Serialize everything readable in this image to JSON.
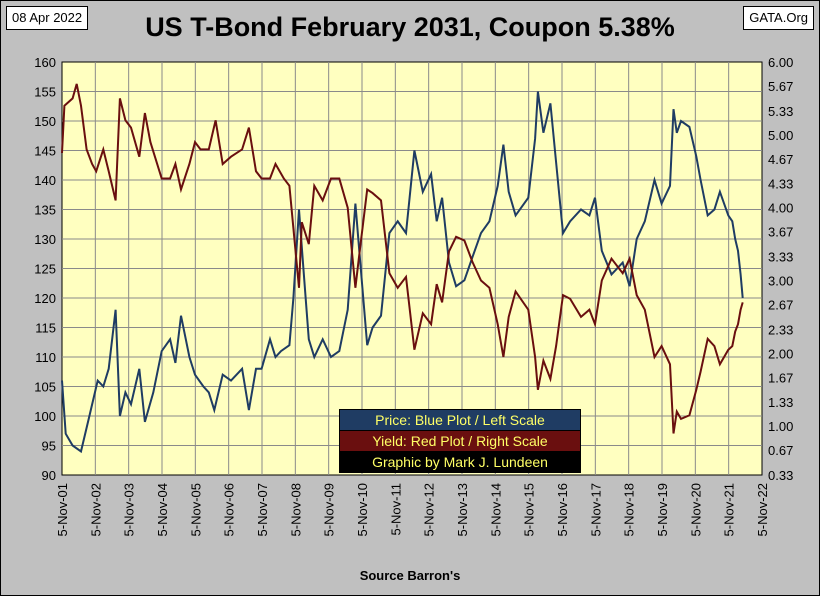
{
  "header": {
    "date": "08 Apr 2022",
    "title": "US T-Bond February 2031, Coupon 5.38%",
    "source": "GATA.Org"
  },
  "footer": {
    "source_note": "Source Barron's"
  },
  "legend": {
    "price": "Price:  Blue Plot / Left Scale",
    "yield": "Yield:  Red Plot / Right Scale",
    "credit": "Graphic by Mark J. Lundeen"
  },
  "colors": {
    "plot_bg": "#ffffc0",
    "price": "#1f3c63",
    "yield": "#6a0f0f",
    "grid": "#8a8a8a",
    "legend_text": "#ffff66"
  },
  "chart_data": {
    "type": "line",
    "title": "US T-Bond February 2031, Coupon 5.38%",
    "xlabel": "",
    "ylabel": "",
    "x_ticks": [
      "5-Nov-01",
      "5-Nov-02",
      "5-Nov-03",
      "5-Nov-04",
      "5-Nov-05",
      "5-Nov-06",
      "5-Nov-07",
      "5-Nov-08",
      "5-Nov-09",
      "5-Nov-10",
      "5-Nov-11",
      "5-Nov-12",
      "5-Nov-13",
      "5-Nov-14",
      "5-Nov-15",
      "5-Nov-16",
      "5-Nov-17",
      "5-Nov-18",
      "5-Nov-19",
      "5-Nov-20",
      "5-Nov-21",
      "5-Nov-22"
    ],
    "xlim": [
      "2001-11-05",
      "2022-11-05"
    ],
    "y_left": {
      "min": 90,
      "max": 160,
      "step": 5,
      "ticks": [
        "90",
        "95",
        "100",
        "105",
        "110",
        "115",
        "120",
        "125",
        "130",
        "135",
        "140",
        "145",
        "150",
        "155",
        "160"
      ]
    },
    "y_right": {
      "min": 0.33,
      "max": 6.0,
      "ticks": [
        "0.33",
        "0.67",
        "1.00",
        "1.33",
        "1.67",
        "2.00",
        "2.33",
        "2.67",
        "3.00",
        "3.33",
        "3.67",
        "4.00",
        "4.33",
        "4.67",
        "5.00",
        "5.33",
        "5.67",
        "6.00"
      ]
    },
    "grid": true,
    "legend_position": "bottom-center",
    "series": [
      {
        "name": "Price",
        "axis": "left",
        "points": [
          [
            "2001-11-05",
            106
          ],
          [
            "2001-12-15",
            97
          ],
          [
            "2002-03-01",
            95
          ],
          [
            "2002-06-01",
            94
          ],
          [
            "2002-09-01",
            100
          ],
          [
            "2002-12-01",
            106
          ],
          [
            "2003-02-01",
            105
          ],
          [
            "2003-04-01",
            108
          ],
          [
            "2003-06-15",
            118
          ],
          [
            "2003-08-01",
            100
          ],
          [
            "2003-10-01",
            104
          ],
          [
            "2003-12-01",
            102
          ],
          [
            "2004-03-01",
            108
          ],
          [
            "2004-05-01",
            99
          ],
          [
            "2004-08-01",
            104
          ],
          [
            "2004-11-01",
            111
          ],
          [
            "2005-02-01",
            113
          ],
          [
            "2005-04-01",
            109
          ],
          [
            "2005-06-01",
            117
          ],
          [
            "2005-09-01",
            110
          ],
          [
            "2005-11-01",
            107
          ],
          [
            "2006-02-01",
            105
          ],
          [
            "2006-04-01",
            104
          ],
          [
            "2006-06-01",
            101
          ],
          [
            "2006-09-01",
            107
          ],
          [
            "2006-12-01",
            106
          ],
          [
            "2007-04-01",
            108
          ],
          [
            "2007-06-15",
            101
          ],
          [
            "2007-09-01",
            108
          ],
          [
            "2007-11-01",
            108
          ],
          [
            "2008-02-01",
            113
          ],
          [
            "2008-04-01",
            110
          ],
          [
            "2008-06-01",
            111
          ],
          [
            "2008-09-01",
            112
          ],
          [
            "2008-10-15",
            120
          ],
          [
            "2008-12-15",
            135
          ],
          [
            "2009-02-01",
            125
          ],
          [
            "2009-04-01",
            113
          ],
          [
            "2009-06-01",
            110
          ],
          [
            "2009-09-01",
            113
          ],
          [
            "2009-12-01",
            110
          ],
          [
            "2010-03-01",
            111
          ],
          [
            "2010-06-01",
            118
          ],
          [
            "2010-08-25",
            136
          ],
          [
            "2010-10-01",
            129
          ],
          [
            "2011-01-01",
            112
          ],
          [
            "2011-03-01",
            115
          ],
          [
            "2011-06-01",
            117
          ],
          [
            "2011-09-01",
            131
          ],
          [
            "2011-12-01",
            133
          ],
          [
            "2012-03-01",
            131
          ],
          [
            "2012-06-01",
            145
          ],
          [
            "2012-09-01",
            138
          ],
          [
            "2012-12-01",
            141
          ],
          [
            "2013-02-01",
            133
          ],
          [
            "2013-04-01",
            137
          ],
          [
            "2013-06-15",
            126
          ],
          [
            "2013-09-01",
            122
          ],
          [
            "2013-12-01",
            123
          ],
          [
            "2014-03-01",
            127
          ],
          [
            "2014-06-01",
            131
          ],
          [
            "2014-09-01",
            133
          ],
          [
            "2014-12-01",
            139
          ],
          [
            "2015-02-01",
            146
          ],
          [
            "2015-04-01",
            138
          ],
          [
            "2015-06-15",
            134
          ],
          [
            "2015-11-01",
            137
          ],
          [
            "2016-01-15",
            147
          ],
          [
            "2016-02-15",
            155
          ],
          [
            "2016-04-15",
            148
          ],
          [
            "2016-07-01",
            153
          ],
          [
            "2016-09-01",
            143
          ],
          [
            "2016-11-15",
            131
          ],
          [
            "2017-02-01",
            133
          ],
          [
            "2017-06-01",
            135
          ],
          [
            "2017-09-01",
            134
          ],
          [
            "2017-11-01",
            137
          ],
          [
            "2018-01-15",
            128
          ],
          [
            "2018-05-01",
            124
          ],
          [
            "2018-09-01",
            126
          ],
          [
            "2018-11-15",
            122
          ],
          [
            "2019-02-01",
            130
          ],
          [
            "2019-05-01",
            133
          ],
          [
            "2019-08-15",
            140
          ],
          [
            "2019-11-01",
            136
          ],
          [
            "2020-02-01",
            139
          ],
          [
            "2020-03-10",
            152
          ],
          [
            "2020-04-15",
            148
          ],
          [
            "2020-06-01",
            150
          ],
          [
            "2020-09-01",
            149
          ],
          [
            "2020-11-15",
            144
          ],
          [
            "2021-01-01",
            140
          ],
          [
            "2021-03-20",
            134
          ],
          [
            "2021-06-01",
            135
          ],
          [
            "2021-08-01",
            138
          ],
          [
            "2021-11-01",
            134
          ],
          [
            "2021-12-15",
            133
          ],
          [
            "2022-01-15",
            130
          ],
          [
            "2022-02-15",
            128
          ],
          [
            "2022-03-15",
            124
          ],
          [
            "2022-04-08",
            120
          ]
        ]
      },
      {
        "name": "Yield",
        "axis": "right",
        "points": [
          [
            "2001-11-05",
            4.75
          ],
          [
            "2001-12-01",
            5.4
          ],
          [
            "2002-03-01",
            5.5
          ],
          [
            "2002-04-15",
            5.7
          ],
          [
            "2002-06-01",
            5.4
          ],
          [
            "2002-08-01",
            4.8
          ],
          [
            "2002-10-01",
            4.6
          ],
          [
            "2002-11-15",
            4.5
          ],
          [
            "2003-02-01",
            4.8
          ],
          [
            "2003-04-01",
            4.5
          ],
          [
            "2003-06-15",
            4.1
          ],
          [
            "2003-08-01",
            5.5
          ],
          [
            "2003-10-01",
            5.2
          ],
          [
            "2003-12-01",
            5.1
          ],
          [
            "2004-03-01",
            4.7
          ],
          [
            "2004-05-01",
            5.3
          ],
          [
            "2004-07-01",
            4.9
          ],
          [
            "2004-11-01",
            4.4
          ],
          [
            "2005-02-01",
            4.4
          ],
          [
            "2005-04-01",
            4.6
          ],
          [
            "2005-06-01",
            4.25
          ],
          [
            "2005-09-01",
            4.6
          ],
          [
            "2005-11-01",
            4.9
          ],
          [
            "2006-01-01",
            4.8
          ],
          [
            "2006-04-01",
            4.8
          ],
          [
            "2006-06-15",
            5.2
          ],
          [
            "2006-09-01",
            4.6
          ],
          [
            "2006-12-01",
            4.7
          ],
          [
            "2007-04-01",
            4.8
          ],
          [
            "2007-06-15",
            5.1
          ],
          [
            "2007-09-01",
            4.5
          ],
          [
            "2007-11-01",
            4.4
          ],
          [
            "2008-02-01",
            4.4
          ],
          [
            "2008-04-01",
            4.6
          ],
          [
            "2008-07-01",
            4.4
          ],
          [
            "2008-09-01",
            4.3
          ],
          [
            "2008-12-15",
            2.9
          ],
          [
            "2009-01-15",
            3.8
          ],
          [
            "2009-04-01",
            3.5
          ],
          [
            "2009-06-01",
            4.3
          ],
          [
            "2009-09-01",
            4.1
          ],
          [
            "2009-12-01",
            4.4
          ],
          [
            "2010-03-01",
            4.4
          ],
          [
            "2010-06-01",
            4.0
          ],
          [
            "2010-08-25",
            2.9
          ],
          [
            "2010-10-01",
            3.3
          ],
          [
            "2011-01-01",
            4.25
          ],
          [
            "2011-03-01",
            4.2
          ],
          [
            "2011-06-01",
            4.1
          ],
          [
            "2011-09-01",
            3.1
          ],
          [
            "2011-12-01",
            2.9
          ],
          [
            "2012-03-01",
            3.05
          ],
          [
            "2012-06-01",
            2.05
          ],
          [
            "2012-09-01",
            2.55
          ],
          [
            "2012-12-01",
            2.4
          ],
          [
            "2013-02-01",
            2.95
          ],
          [
            "2013-04-01",
            2.7
          ],
          [
            "2013-06-15",
            3.4
          ],
          [
            "2013-09-01",
            3.6
          ],
          [
            "2013-12-01",
            3.55
          ],
          [
            "2014-03-01",
            3.25
          ],
          [
            "2014-06-01",
            3.0
          ],
          [
            "2014-09-01",
            2.9
          ],
          [
            "2014-12-01",
            2.4
          ],
          [
            "2015-02-01",
            1.95
          ],
          [
            "2015-04-01",
            2.5
          ],
          [
            "2015-06-15",
            2.85
          ],
          [
            "2015-11-01",
            2.6
          ],
          [
            "2016-01-15",
            1.95
          ],
          [
            "2016-02-15",
            1.5
          ],
          [
            "2016-04-15",
            1.9
          ],
          [
            "2016-07-01",
            1.65
          ],
          [
            "2016-09-01",
            2.1
          ],
          [
            "2016-11-15",
            2.8
          ],
          [
            "2017-02-01",
            2.75
          ],
          [
            "2017-06-01",
            2.5
          ],
          [
            "2017-09-01",
            2.6
          ],
          [
            "2017-11-01",
            2.4
          ],
          [
            "2018-01-15",
            3.0
          ],
          [
            "2018-05-01",
            3.3
          ],
          [
            "2018-09-01",
            3.1
          ],
          [
            "2018-11-15",
            3.3
          ],
          [
            "2019-02-01",
            2.8
          ],
          [
            "2019-05-01",
            2.6
          ],
          [
            "2019-08-15",
            1.95
          ],
          [
            "2019-11-01",
            2.1
          ],
          [
            "2020-02-01",
            1.85
          ],
          [
            "2020-03-10",
            0.9
          ],
          [
            "2020-04-15",
            1.2
          ],
          [
            "2020-06-01",
            1.1
          ],
          [
            "2020-09-01",
            1.15
          ],
          [
            "2020-11-15",
            1.5
          ],
          [
            "2021-01-01",
            1.75
          ],
          [
            "2021-03-20",
            2.2
          ],
          [
            "2021-06-01",
            2.1
          ],
          [
            "2021-08-01",
            1.85
          ],
          [
            "2021-11-01",
            2.05
          ],
          [
            "2021-12-15",
            2.1
          ],
          [
            "2022-01-15",
            2.3
          ],
          [
            "2022-02-15",
            2.4
          ],
          [
            "2022-03-15",
            2.6
          ],
          [
            "2022-04-08",
            2.7
          ]
        ]
      }
    ]
  }
}
